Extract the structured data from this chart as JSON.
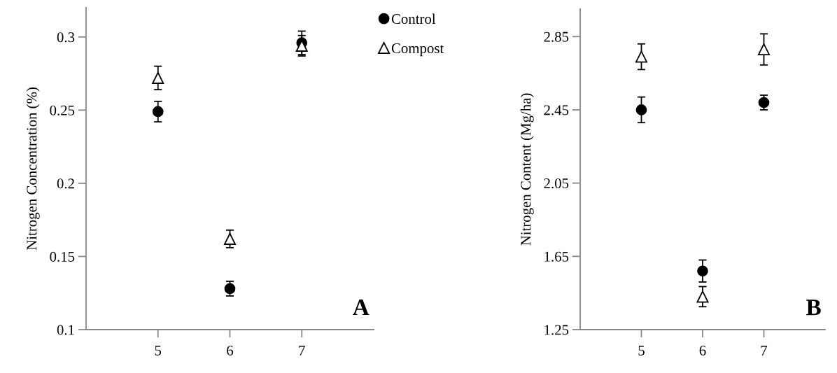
{
  "chart_data": [
    {
      "type": "scatter",
      "ylabel": "Nitrogen Concentration (%)",
      "x": [
        5,
        6,
        7
      ],
      "xlim": [
        4,
        8
      ],
      "xticks": [
        5,
        6,
        7
      ],
      "ylim": [
        0.1,
        0.32
      ],
      "yticks": [
        0.1,
        0.15,
        0.2,
        0.25,
        0.3
      ],
      "legend": "top right",
      "grid": false,
      "annotations": [
        "A"
      ],
      "series": [
        {
          "name": "Control",
          "color": "#000000",
          "marker": "circle",
          "values": [
            0.249,
            0.128,
            0.296
          ],
          "errors": [
            0.007,
            0.005,
            0.008
          ]
        },
        {
          "name": "Compost",
          "color": "#000000",
          "marker": "triangle",
          "values": [
            0.272,
            0.162,
            0.294
          ],
          "errors": [
            0.008,
            0.006,
            0.007
          ]
        }
      ]
    },
    {
      "type": "scatter",
      "ylabel": "Nitrogen Content (Mg/ha)",
      "x": [
        5,
        6,
        7
      ],
      "xlim": [
        4,
        8
      ],
      "xticks": [
        5,
        6,
        7
      ],
      "ylim": [
        1.25,
        3.0
      ],
      "yticks": [
        1.25,
        1.65,
        2.05,
        2.45,
        2.85
      ],
      "grid": false,
      "annotations": [
        "B"
      ],
      "series": [
        {
          "color": "#000000",
          "marker": "circle",
          "values": [
            2.45,
            1.57,
            2.49
          ],
          "errors": [
            0.07,
            0.06,
            0.04
          ]
        },
        {
          "color": "#000000",
          "marker": "triangle",
          "values": [
            2.74,
            1.43,
            2.78
          ],
          "errors": [
            0.07,
            0.055,
            0.085
          ]
        }
      ]
    }
  ]
}
